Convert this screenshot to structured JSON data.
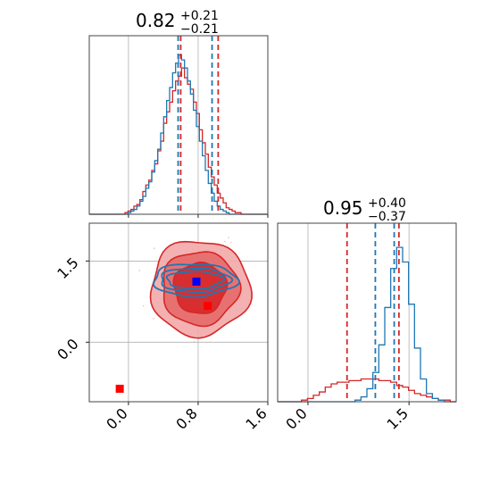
{
  "chart_data": {
    "type": "corner",
    "colors": {
      "red": "#d62728",
      "blue": "#1f77b4",
      "truth_red": "#ff0000",
      "truth_blue": "#0000ff"
    },
    "param1": {
      "title": {
        "main": "0.82",
        "sup": "+0.21",
        "sub": "−0.21"
      },
      "xlim": [
        -0.45,
        1.6
      ],
      "ticks": [
        "0.0",
        "0.8",
        "1.6"
      ],
      "tick_values": [
        0.0,
        0.8,
        1.6
      ],
      "red_quantiles": [
        0.6,
        1.03
      ],
      "blue_quantiles": [
        0.57,
        0.96
      ],
      "red_hist_density": [
        0,
        0,
        0,
        0,
        0,
        0,
        0,
        0,
        0,
        0,
        0,
        0,
        0.01,
        0.02,
        0.03,
        0.05,
        0.06,
        0.09,
        0.14,
        0.18,
        0.21,
        0.27,
        0.31,
        0.39,
        0.45,
        0.56,
        0.63,
        0.69,
        0.76,
        0.82,
        0.85,
        0.9,
        0.84,
        0.8,
        0.77,
        0.69,
        0.62,
        0.52,
        0.44,
        0.37,
        0.29,
        0.23,
        0.18,
        0.13,
        0.1,
        0.07,
        0.04,
        0.03,
        0.02,
        0.01,
        0.01,
        0,
        0,
        0,
        0,
        0,
        0,
        0,
        0,
        0
      ],
      "blue_hist_density": [
        0,
        0,
        0,
        0,
        0,
        0,
        0,
        0,
        0,
        0,
        0,
        0,
        0,
        0.01,
        0.02,
        0.03,
        0.05,
        0.08,
        0.11,
        0.16,
        0.2,
        0.26,
        0.33,
        0.4,
        0.5,
        0.6,
        0.7,
        0.78,
        0.87,
        0.93,
        0.98,
        0.95,
        0.9,
        0.82,
        0.74,
        0.64,
        0.54,
        0.45,
        0.36,
        0.27,
        0.19,
        0.13,
        0.08,
        0.05,
        0.03,
        0.02,
        0.01,
        0,
        0,
        0,
        0,
        0,
        0,
        0,
        0,
        0,
        0,
        0,
        0,
        0
      ]
    },
    "param2": {
      "title": {
        "main": "0.95",
        "sup": "+0.40",
        "sub": "−0.37"
      },
      "xlim": [
        -0.45,
        2.2
      ],
      "ticks": [
        "0.0",
        "1.5"
      ],
      "tick_values": [
        0.0,
        1.5
      ],
      "red_quantiles": [
        0.58,
        1.35
      ],
      "blue_quantiles": [
        1.0,
        1.28
      ],
      "red_hist_density": [
        0,
        0,
        0,
        0,
        0.01,
        0.02,
        0.04,
        0.06,
        0.09,
        0.11,
        0.12,
        0.12,
        0.13,
        0.13,
        0.14,
        0.14,
        0.14,
        0.13,
        0.13,
        0.12,
        0.1,
        0.09,
        0.07,
        0.05,
        0.04,
        0.03,
        0.02,
        0.01,
        0.01,
        0
      ],
      "blue_hist_density": [
        0,
        0,
        0,
        0,
        0,
        0,
        0,
        0,
        0,
        0,
        0,
        0,
        0,
        0.01,
        0.03,
        0.08,
        0.18,
        0.35,
        0.58,
        0.82,
        0.95,
        0.86,
        0.6,
        0.33,
        0.14,
        0.05,
        0.02,
        0.01,
        0,
        0
      ]
    },
    "joint": {
      "xlim": [
        -0.45,
        1.6
      ],
      "ylim": [
        -1.1,
        2.2
      ],
      "xticks": [
        "0.0",
        "0.8",
        "1.6"
      ],
      "xtick_values": [
        0.0,
        0.8,
        1.6
      ],
      "yticks": [
        "0.0",
        "1.5"
      ],
      "ytick_values": [
        0.0,
        1.5
      ],
      "red_center": [
        0.82,
        1.1
      ],
      "red_contour_radii": [
        [
          0.57,
          0.88
        ],
        [
          0.44,
          0.68
        ],
        [
          0.3,
          0.47
        ]
      ],
      "blue_center": [
        0.82,
        1.15
      ],
      "blue_contour_radii": [
        [
          0.48,
          0.3
        ],
        [
          0.4,
          0.22
        ],
        [
          0.32,
          0.16
        ]
      ],
      "truth_blue": [
        0.78,
        1.12
      ],
      "truth_red": [
        [
          0.91,
          0.67
        ],
        [
          -0.1,
          -0.86
        ]
      ]
    }
  }
}
